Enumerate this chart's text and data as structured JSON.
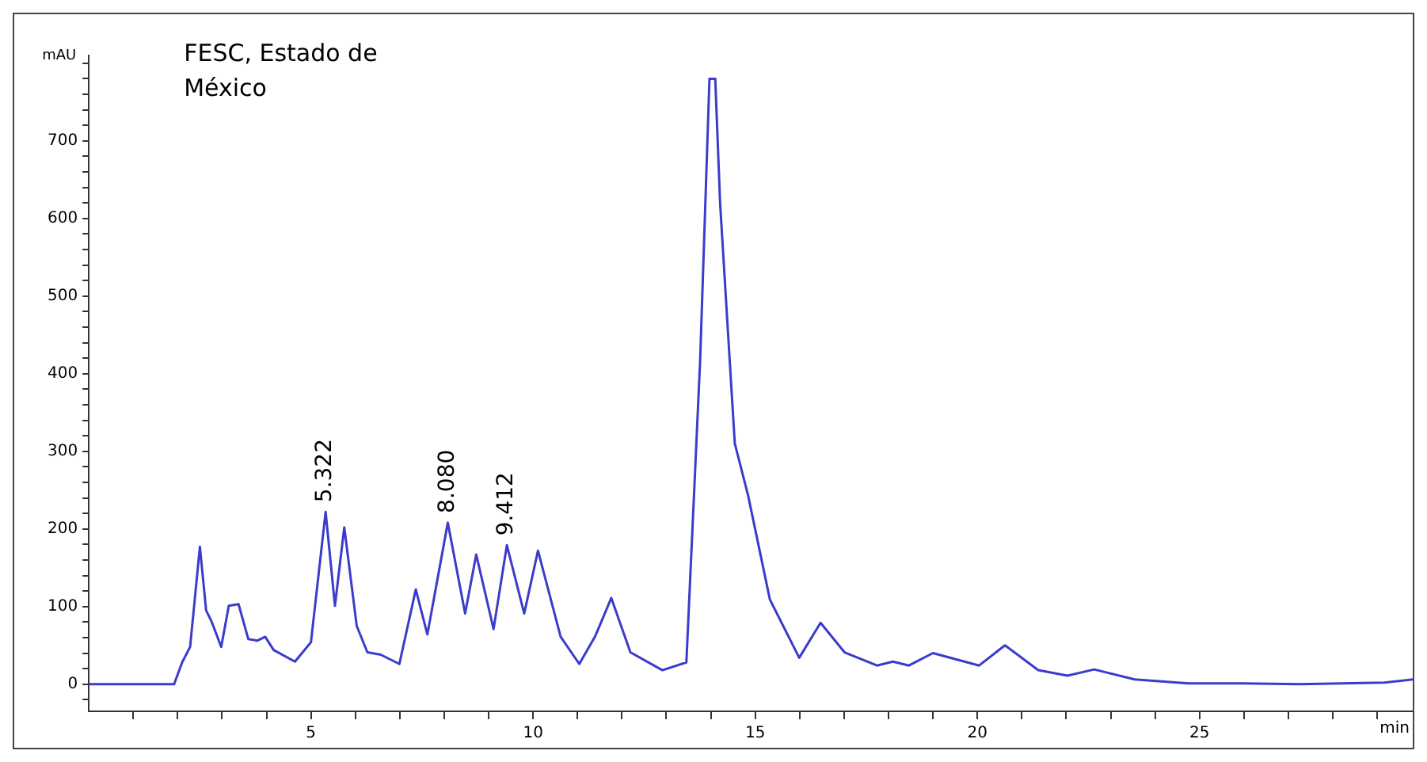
{
  "chart_data": {
    "type": "line",
    "title": "FESC, Estado de México",
    "xlabel": "min",
    "ylabel": "mAU",
    "xlim": [
      0,
      29.8
    ],
    "ylim": [
      -35,
      810
    ],
    "xticks": [
      {
        "value": 1,
        "label": null
      },
      {
        "value": 2,
        "label": null
      },
      {
        "value": 3,
        "label": null
      },
      {
        "value": 4,
        "label": null
      },
      5,
      {
        "value": 6,
        "label": null
      },
      {
        "value": 7,
        "label": null
      },
      {
        "value": 8,
        "label": null
      },
      {
        "value": 9,
        "label": null
      },
      10,
      {
        "value": 11,
        "label": null
      },
      {
        "value": 12,
        "label": null
      },
      {
        "value": 13,
        "label": null
      },
      {
        "value": 14,
        "label": null
      },
      15,
      {
        "value": 16,
        "label": null
      },
      {
        "value": 17,
        "label": null
      },
      {
        "value": 18,
        "label": null
      },
      {
        "value": 19,
        "label": null
      },
      20,
      {
        "value": 21,
        "label": null
      },
      {
        "value": 22,
        "label": null
      },
      {
        "value": 23,
        "label": null
      },
      {
        "value": 24,
        "label": null
      },
      25,
      {
        "value": 26,
        "label": null
      },
      {
        "value": 27,
        "label": null
      },
      {
        "value": 28,
        "label": null
      },
      {
        "value": 29,
        "label": null
      }
    ],
    "yticks": [
      {
        "value": -20,
        "label": null
      },
      0,
      {
        "value": 20,
        "label": null
      },
      {
        "value": 40,
        "label": null
      },
      {
        "value": 60,
        "label": null
      },
      {
        "value": 80,
        "label": null
      },
      100,
      {
        "value": 120,
        "label": null
      },
      {
        "value": 140,
        "label": null
      },
      {
        "value": 160,
        "label": null
      },
      {
        "value": 180,
        "label": null
      },
      200,
      {
        "value": 220,
        "label": null
      },
      {
        "value": 240,
        "label": null
      },
      {
        "value": 260,
        "label": null
      },
      {
        "value": 280,
        "label": null
      },
      300,
      {
        "value": 320,
        "label": null
      },
      {
        "value": 340,
        "label": null
      },
      {
        "value": 360,
        "label": null
      },
      {
        "value": 380,
        "label": null
      },
      400,
      {
        "value": 420,
        "label": null
      },
      {
        "value": 440,
        "label": null
      },
      {
        "value": 460,
        "label": null
      },
      {
        "value": 480,
        "label": null
      },
      500,
      {
        "value": 520,
        "label": null
      },
      {
        "value": 540,
        "label": null
      },
      {
        "value": 560,
        "label": null
      },
      {
        "value": 580,
        "label": null
      },
      600,
      {
        "value": 620,
        "label": null
      },
      {
        "value": 640,
        "label": null
      },
      {
        "value": 660,
        "label": null
      },
      {
        "value": 680,
        "label": null
      },
      700,
      {
        "value": 720,
        "label": null
      },
      {
        "value": 740,
        "label": null
      },
      {
        "value": 760,
        "label": null
      },
      {
        "value": 780,
        "label": null
      },
      {
        "value": 800,
        "label": null
      }
    ],
    "grid": false,
    "legend": false,
    "marker": "none",
    "line_style": "solid",
    "series": [
      {
        "color": "#3b3bcc",
        "x": [
          0,
          1.92,
          2.1,
          2.28,
          2.5,
          2.64,
          2.76,
          2.98,
          3.15,
          3.37,
          3.59,
          3.79,
          3.97,
          4.16,
          4.64,
          5.0,
          5.33,
          5.54,
          5.75,
          6.03,
          6.27,
          6.57,
          6.99,
          7.36,
          7.62,
          8.08,
          8.47,
          8.72,
          9.11,
          9.41,
          9.8,
          10.11,
          10.62,
          11.04,
          11.4,
          11.76,
          12.19,
          12.91,
          13.45,
          13.76,
          13.97,
          14.1,
          14.21,
          14.54,
          14.84,
          15.33,
          15.99,
          16.47,
          17.01,
          17.74,
          18.1,
          18.46,
          19.0,
          20.04,
          20.62,
          21.37,
          22.03,
          22.63,
          23.54,
          24.75,
          25.95,
          27.28,
          29.16,
          29.8
        ],
        "values": [
          0,
          0,
          28,
          48,
          177,
          95,
          81,
          48,
          101,
          103,
          58,
          56,
          61,
          44,
          29,
          54,
          222,
          101,
          202,
          75,
          41,
          38,
          26,
          122,
          64,
          208,
          91,
          167,
          71,
          179,
          91,
          172,
          61,
          26,
          62,
          111,
          41,
          18,
          28,
          417,
          780,
          780,
          619,
          310,
          243,
          109,
          34,
          79,
          41,
          24,
          29,
          24,
          40,
          24,
          50,
          18,
          11,
          19,
          6,
          1,
          1,
          0,
          2,
          6
        ]
      }
    ],
    "annotations": [
      {
        "text": "5.322",
        "x": 5.322,
        "y": 222
      },
      {
        "text": "8.080",
        "x": 8.08,
        "y": 208
      },
      {
        "text": "9.412",
        "x": 9.412,
        "y": 179
      }
    ]
  }
}
